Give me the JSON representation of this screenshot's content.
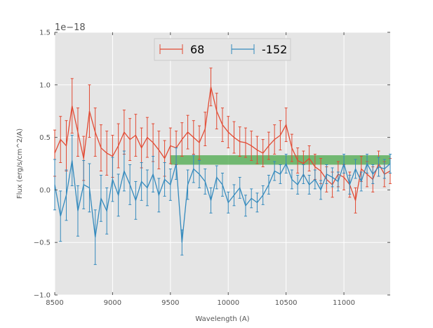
{
  "chart_data": {
    "type": "line",
    "title": "",
    "xlabel": "Wavelength (A)",
    "ylabel": "Flux (erg/s/cm^2/A)",
    "y_offset_text": "1e−18",
    "xlim": [
      8500,
      11400
    ],
    "ylim": [
      -1.0,
      1.5
    ],
    "xticks": [
      8500,
      9000,
      9500,
      10000,
      10500,
      11000
    ],
    "xtick_labels": [
      "8500",
      "9000",
      "9500",
      "10000",
      "10500",
      "11000"
    ],
    "yticks": [
      -1.0,
      -0.5,
      0.0,
      0.5,
      1.0,
      1.5
    ],
    "ytick_labels": [
      "−1.0",
      "−0.5",
      "0.0",
      "0.5",
      "1.0",
      "1.5"
    ],
    "grid": true,
    "legend_position": "top-center",
    "band": {
      "x_start": 9500,
      "x_end": 11400,
      "y_low": 0.24,
      "y_high": 0.33,
      "color": "#4aa84a"
    },
    "series": [
      {
        "name": "68",
        "color": "#e24a33",
        "x": [
          8500,
          8550,
          8600,
          8650,
          8700,
          8750,
          8800,
          8850,
          8900,
          8950,
          9000,
          9050,
          9100,
          9150,
          9200,
          9250,
          9300,
          9350,
          9400,
          9450,
          9500,
          9550,
          9600,
          9650,
          9700,
          9750,
          9800,
          9850,
          9900,
          9950,
          10000,
          10050,
          10100,
          10150,
          10200,
          10250,
          10300,
          10350,
          10400,
          10450,
          10500,
          10550,
          10600,
          10650,
          10700,
          10750,
          10800,
          10850,
          10900,
          10950,
          11000,
          11050,
          11100,
          11150,
          11200,
          11250,
          11300,
          11350,
          11400
        ],
        "y": [
          0.35,
          0.48,
          0.42,
          0.8,
          0.55,
          0.3,
          0.75,
          0.55,
          0.4,
          0.35,
          0.32,
          0.42,
          0.55,
          0.48,
          0.52,
          0.4,
          0.5,
          0.45,
          0.38,
          0.3,
          0.42,
          0.4,
          0.48,
          0.55,
          0.5,
          0.45,
          0.58,
          0.98,
          0.75,
          0.62,
          0.55,
          0.5,
          0.46,
          0.45,
          0.42,
          0.38,
          0.35,
          0.42,
          0.48,
          0.52,
          0.62,
          0.4,
          0.28,
          0.25,
          0.3,
          0.22,
          0.18,
          0.1,
          0.05,
          0.15,
          0.12,
          0.05,
          -0.1,
          0.2,
          0.15,
          0.1,
          0.25,
          0.15,
          0.18
        ],
        "err": [
          0.22,
          0.22,
          0.24,
          0.26,
          0.23,
          0.21,
          0.25,
          0.23,
          0.22,
          0.21,
          0.2,
          0.21,
          0.21,
          0.2,
          0.2,
          0.19,
          0.19,
          0.18,
          0.18,
          0.17,
          0.17,
          0.16,
          0.16,
          0.16,
          0.16,
          0.16,
          0.16,
          0.18,
          0.17,
          0.16,
          0.15,
          0.15,
          0.14,
          0.14,
          0.14,
          0.13,
          0.13,
          0.13,
          0.14,
          0.14,
          0.16,
          0.13,
          0.12,
          0.12,
          0.12,
          0.12,
          0.12,
          0.12,
          0.12,
          0.12,
          0.12,
          0.12,
          0.12,
          0.12,
          0.12,
          0.12,
          0.12,
          0.12,
          0.12
        ]
      },
      {
        "name": "-152",
        "color": "#348abd",
        "x": [
          8500,
          8550,
          8600,
          8650,
          8700,
          8750,
          8800,
          8850,
          8900,
          8950,
          9000,
          9050,
          9100,
          9150,
          9200,
          9250,
          9300,
          9350,
          9400,
          9450,
          9500,
          9550,
          9600,
          9650,
          9700,
          9750,
          9800,
          9850,
          9900,
          9950,
          10000,
          10050,
          10100,
          10150,
          10200,
          10250,
          10300,
          10350,
          10400,
          10450,
          10500,
          10550,
          10600,
          10650,
          10700,
          10750,
          10800,
          10850,
          10900,
          10950,
          11000,
          11050,
          11100,
          11150,
          11200,
          11250,
          11300,
          11350,
          11400
        ],
        "y": [
          0.05,
          -0.25,
          -0.05,
          0.28,
          -0.2,
          0.05,
          0.02,
          -0.45,
          -0.08,
          -0.2,
          0.1,
          -0.05,
          0.18,
          0.05,
          -0.1,
          0.08,
          0.02,
          0.15,
          -0.05,
          0.1,
          0.05,
          0.25,
          -0.5,
          0.05,
          0.2,
          0.15,
          0.08,
          -0.1,
          0.12,
          0.05,
          -0.12,
          -0.05,
          0.02,
          -0.15,
          -0.08,
          -0.12,
          -0.05,
          0.05,
          0.18,
          0.15,
          0.25,
          0.1,
          0.05,
          0.15,
          0.05,
          0.1,
          0.0,
          0.15,
          0.12,
          0.08,
          0.25,
          0.05,
          0.2,
          0.08,
          0.25,
          0.15,
          0.22,
          0.2,
          0.25
        ],
        "err": [
          0.24,
          0.24,
          0.24,
          0.24,
          0.24,
          0.23,
          0.23,
          0.26,
          0.22,
          0.22,
          0.21,
          0.2,
          0.19,
          0.19,
          0.18,
          0.18,
          0.17,
          0.17,
          0.16,
          0.16,
          0.15,
          0.15,
          0.12,
          0.14,
          0.13,
          0.13,
          0.12,
          0.12,
          0.11,
          0.11,
          0.1,
          0.1,
          0.1,
          0.1,
          0.09,
          0.09,
          0.09,
          0.09,
          0.09,
          0.09,
          0.09,
          0.09,
          0.09,
          0.09,
          0.09,
          0.09,
          0.09,
          0.09,
          0.09,
          0.09,
          0.09,
          0.09,
          0.09,
          0.09,
          0.09,
          0.09,
          0.09,
          0.09,
          0.09
        ]
      }
    ]
  }
}
